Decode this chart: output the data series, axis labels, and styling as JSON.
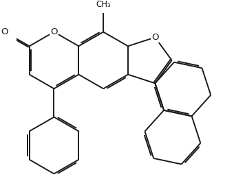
{
  "bg_color": "#ffffff",
  "bond_color": "#1a1a1a",
  "bond_lw": 1.4,
  "dbo": 0.055,
  "figsize": [
    3.4,
    2.8
  ],
  "dpi": 100,
  "xlim": [
    -3.2,
    4.2
  ],
  "ylim": [
    -3.5,
    2.8
  ],
  "label_fontsize": 9.5,
  "methyl_fontsize": 8.5
}
